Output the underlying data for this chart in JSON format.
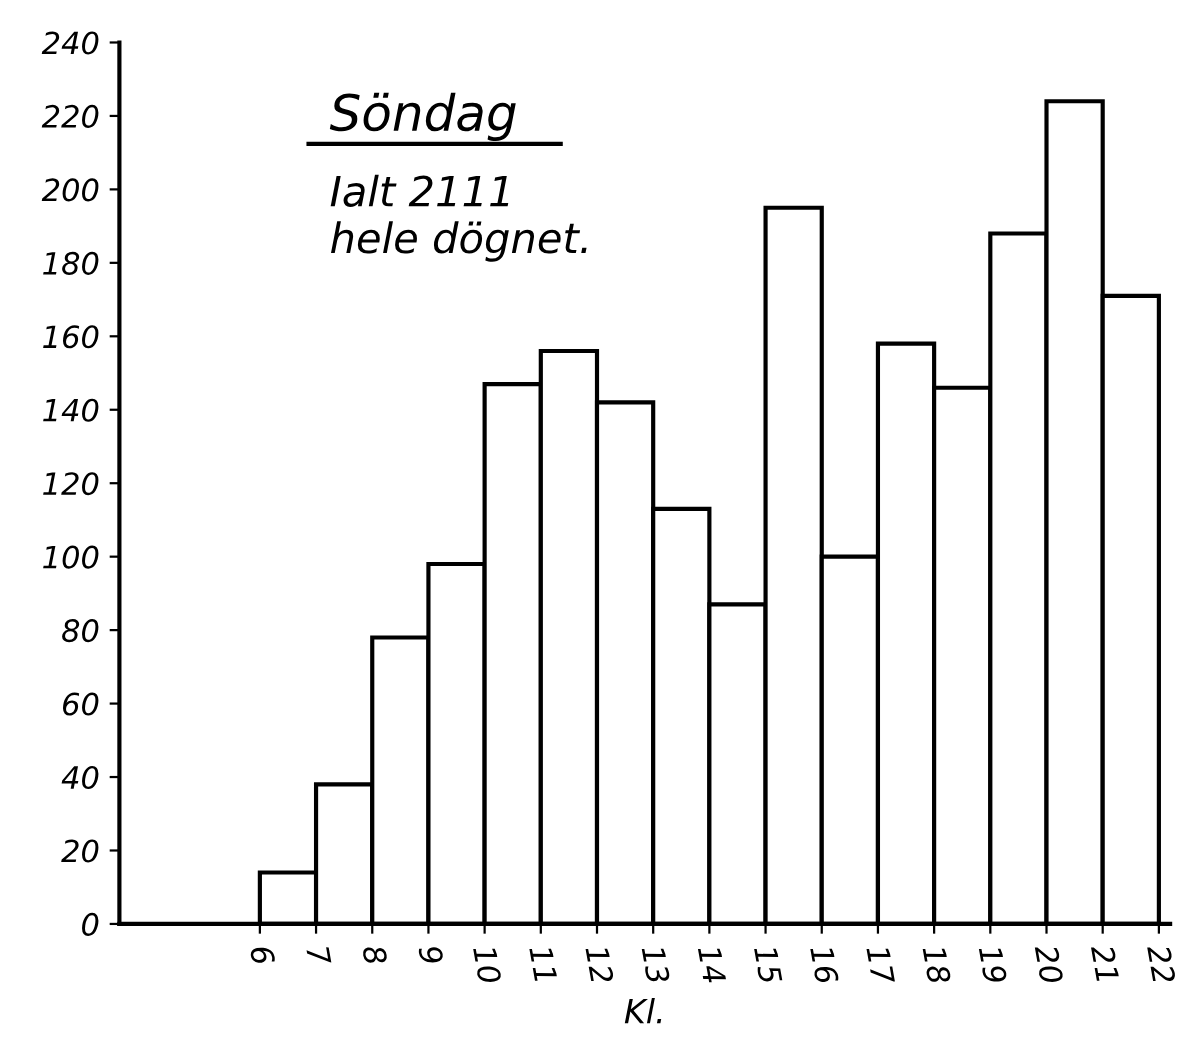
{
  "chart_data": {
    "type": "histogram",
    "title": "Söndag",
    "xlabel": "Kl.",
    "annotations": [
      "Ialt 2111\nhele dögnet."
    ],
    "bins": [
      6,
      7,
      8,
      9,
      10,
      11,
      12,
      13,
      14,
      15,
      16,
      17,
      18,
      19,
      20,
      21,
      22
    ],
    "values": [
      14,
      38,
      78,
      98,
      147,
      156,
      142,
      113,
      87,
      195,
      100,
      158,
      146,
      188,
      224,
      171
    ],
    "color": "#000000",
    "xlim": [
      3.5,
      22.2
    ],
    "xticks": [
      6,
      7,
      8,
      9,
      10,
      11,
      12,
      13,
      14,
      15,
      16,
      17,
      18,
      19,
      20,
      21,
      22
    ],
    "ylim": [
      0,
      240
    ],
    "yticks": [
      0,
      20,
      40,
      60,
      80,
      100,
      120,
      140,
      160,
      180,
      200,
      220,
      240
    ],
    "grid": false
  }
}
